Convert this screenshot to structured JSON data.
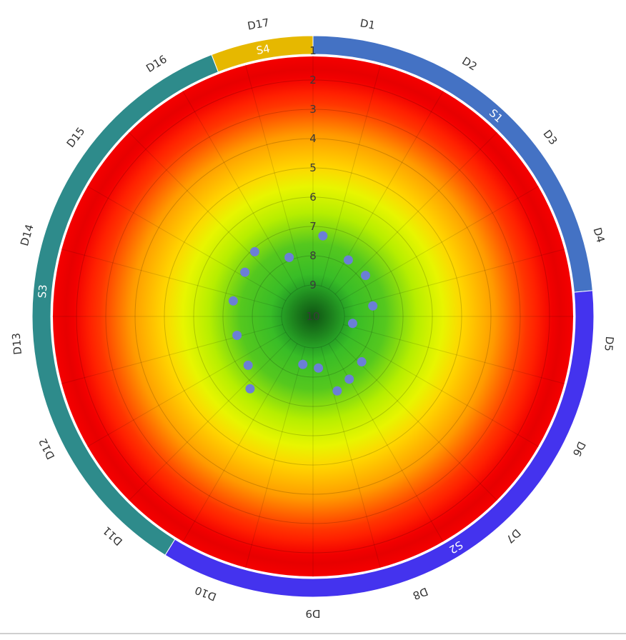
{
  "chart_data": {
    "type": "polar-scatter",
    "title": "",
    "radial_axis": {
      "labels": [
        "1",
        "2",
        "3",
        "4",
        "5",
        "6",
        "7",
        "8",
        "9",
        "10"
      ],
      "range": [
        1,
        10
      ],
      "direction": "outer-to-center"
    },
    "dimensions": [
      "D1",
      "D2",
      "D3",
      "D4",
      "D5",
      "D6",
      "D7",
      "D8",
      "D9",
      "D10",
      "D11",
      "D12",
      "D13",
      "D14",
      "D15",
      "D16",
      "D17"
    ],
    "sections": [
      {
        "label": "S1",
        "dimensions": [
          "D1",
          "D2",
          "D3",
          "D4"
        ],
        "color": "#4472c4"
      },
      {
        "label": "S2",
        "dimensions": [
          "D5",
          "D6",
          "D7",
          "D8",
          "D9",
          "D10"
        ],
        "color": "#4433ee"
      },
      {
        "label": "S3",
        "dimensions": [
          "D11",
          "D12",
          "D13",
          "D14",
          "D15",
          "D16"
        ],
        "color": "#2e8b8b"
      },
      {
        "label": "S4",
        "dimensions": [
          "D17"
        ],
        "color": "#e6b800"
      }
    ],
    "points": [
      {
        "angle_deg": 7,
        "value": 7.3
      },
      {
        "angle_deg": 32,
        "value": 7.8
      },
      {
        "angle_deg": 52,
        "value": 7.8
      },
      {
        "angle_deg": 80,
        "value": 8.0
      },
      {
        "angle_deg": 100,
        "value": 8.7
      },
      {
        "angle_deg": 133,
        "value": 7.8
      },
      {
        "angle_deg": 150,
        "value": 7.6
      },
      {
        "angle_deg": 162,
        "value": 7.4
      },
      {
        "angle_deg": 174,
        "value": 8.3
      },
      {
        "angle_deg": 192,
        "value": 8.4
      },
      {
        "angle_deg": 221,
        "value": 6.8
      },
      {
        "angle_deg": 233,
        "value": 7.3
      },
      {
        "angle_deg": 256,
        "value": 7.4
      },
      {
        "angle_deg": 281,
        "value": 7.3
      },
      {
        "angle_deg": 303,
        "value": 7.3
      },
      {
        "angle_deg": 318,
        "value": 7.1
      },
      {
        "angle_deg": 338,
        "value": 7.9
      }
    ],
    "point_color": "#6b7fd6",
    "gradient": {
      "center": "#1fa82a",
      "middle": "#d8f400",
      "outer": "#ff0000"
    },
    "grid": true
  }
}
